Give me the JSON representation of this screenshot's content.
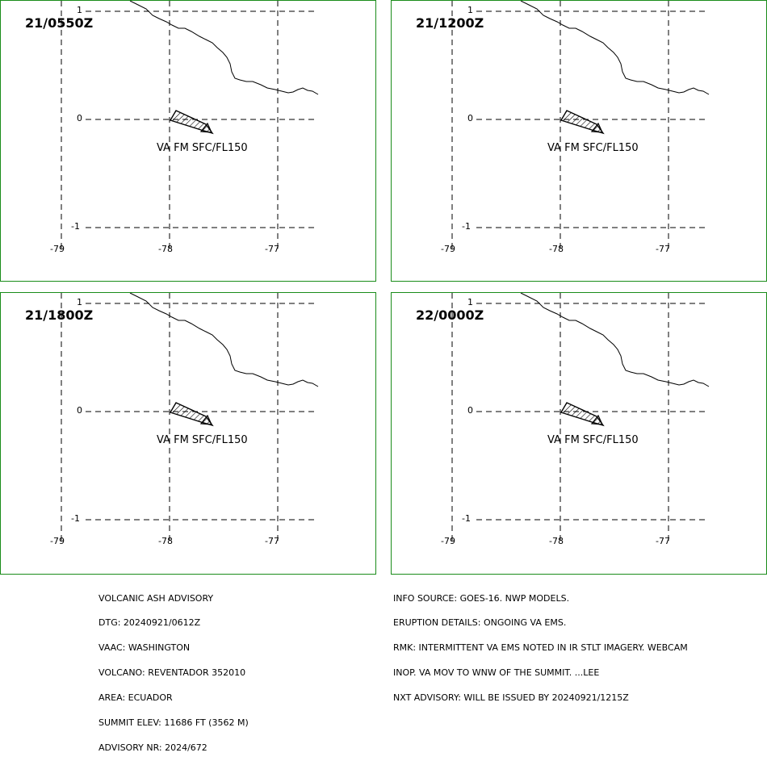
{
  "panels": [
    {
      "time": "21/0550Z",
      "ash_label": "VA FM SFC/FL150"
    },
    {
      "time": "21/1200Z",
      "ash_label": "VA FM SFC/FL150"
    },
    {
      "time": "21/1800Z",
      "ash_label": "VA FM SFC/FL150"
    },
    {
      "time": "22/0000Z",
      "ash_label": "VA FM SFC/FL150"
    }
  ],
  "axes": {
    "lat_labels": [
      "1",
      "0",
      "-1"
    ],
    "lon_labels": [
      "-79",
      "-78",
      "-77"
    ]
  },
  "colors": {
    "panel_border": "#1a8c1a",
    "lines": "#000000"
  },
  "advisory_left": [
    "VOLCANIC ASH ADVISORY",
    "DTG: 20240921/0612Z",
    "VAAC: WASHINGTON",
    "VOLCANO: REVENTADOR 352010",
    "AREA: ECUADOR",
    "SUMMIT ELEV: 11686 FT (3562 M)",
    "ADVISORY NR: 2024/672"
  ],
  "advisory_right": [
    "INFO SOURCE: GOES-16. NWP MODELS.",
    "ERUPTION DETAILS: ONGOING VA EMS.",
    "RMK: INTERMITTENT VA EMS NOTED IN IR STLT IMAGERY. WEBCAM",
    "INOP. VA MOV TO WNW OF THE SUMMIT. ...LEE",
    "NXT ADVISORY: WILL BE ISSUED BY 20240921/1215Z"
  ]
}
